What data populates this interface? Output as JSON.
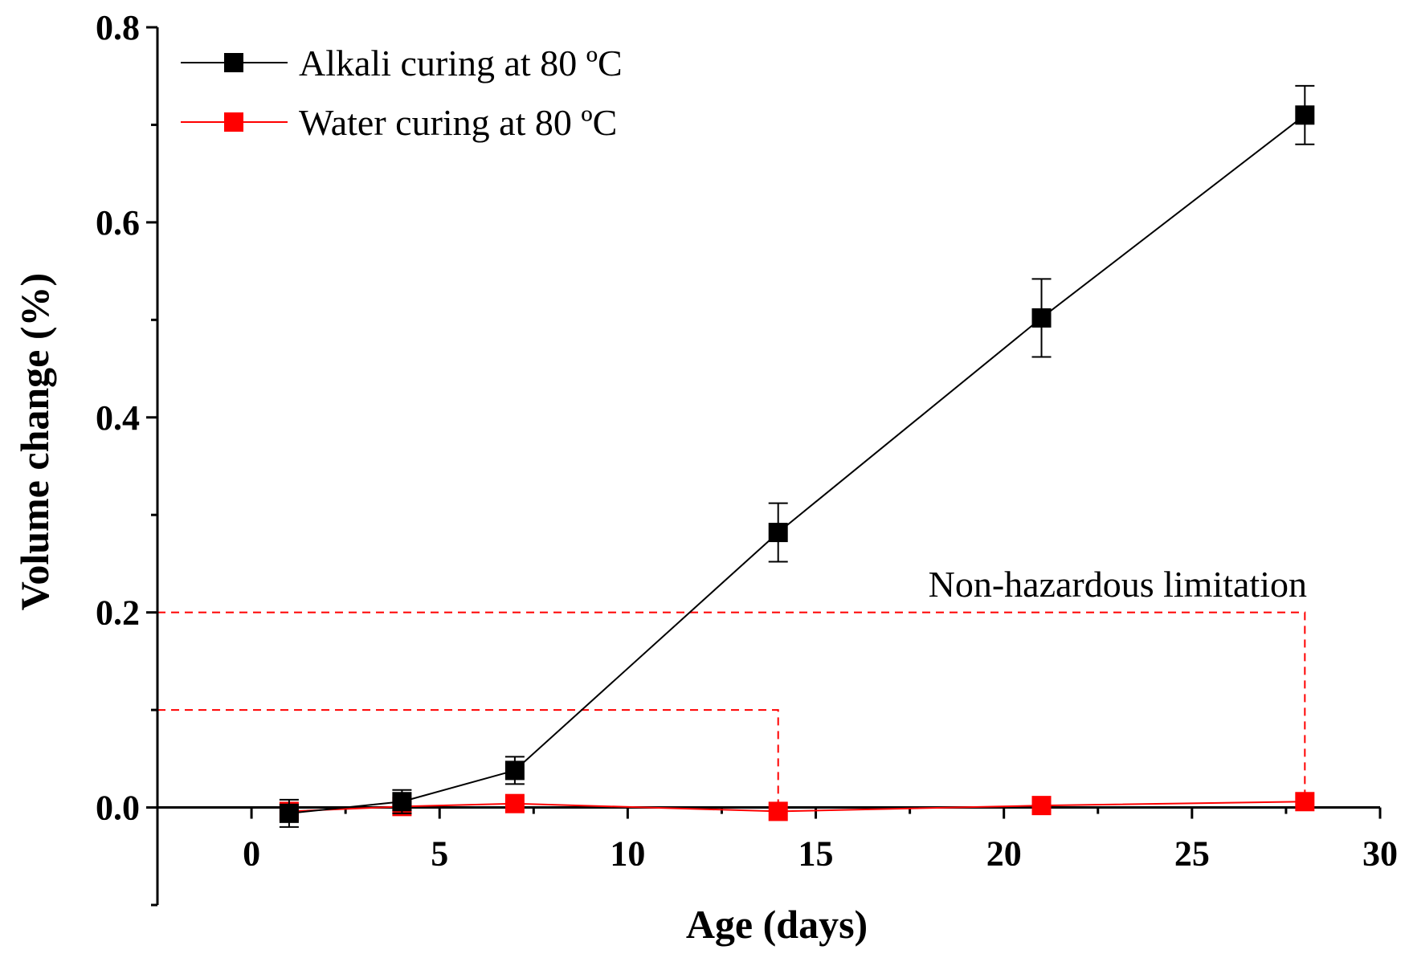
{
  "chart_data": {
    "type": "line",
    "xlabel": "Age (days)",
    "ylabel": "Volume change (%)",
    "xlim": [
      -2.5,
      30
    ],
    "ylim": [
      -0.1,
      0.8
    ],
    "x_ticks": [
      0,
      5,
      10,
      15,
      20,
      25,
      30
    ],
    "x_tick_labels": [
      "0",
      "5",
      "10",
      "15",
      "20",
      "25",
      "30"
    ],
    "y_ticks": [
      0.0,
      0.2,
      0.4,
      0.6,
      0.8
    ],
    "y_tick_labels": [
      "0.0",
      "0.2",
      "0.4",
      "0.6",
      "0.8"
    ],
    "series": [
      {
        "name": "Alkali curing at 80 ºC",
        "color": "#000000",
        "marker": "square",
        "x": [
          1,
          4,
          7,
          14,
          21,
          28
        ],
        "y": [
          -0.006,
          0.006,
          0.038,
          0.282,
          0.502,
          0.71
        ],
        "error": [
          0.014,
          0.012,
          0.014,
          0.03,
          0.04,
          0.03
        ]
      },
      {
        "name": "Water curing at 80 ºC",
        "color": "#ff0000",
        "marker": "square",
        "x": [
          1,
          4,
          7,
          14,
          21,
          28
        ],
        "y": [
          -0.004,
          0.001,
          0.004,
          -0.004,
          0.002,
          0.006
        ],
        "error": [
          0,
          0,
          0,
          0,
          0,
          0
        ]
      }
    ],
    "reference_lines": [
      {
        "y": 0.1,
        "x_end": 14,
        "color": "#ff0000",
        "style": "dashed"
      },
      {
        "y": 0.2,
        "x_end": 28,
        "color": "#ff0000",
        "style": "dashed"
      }
    ],
    "annotations": [
      {
        "text": "Non-hazardous limitation"
      }
    ],
    "legend": {
      "position": "top-left"
    },
    "grid": false
  }
}
